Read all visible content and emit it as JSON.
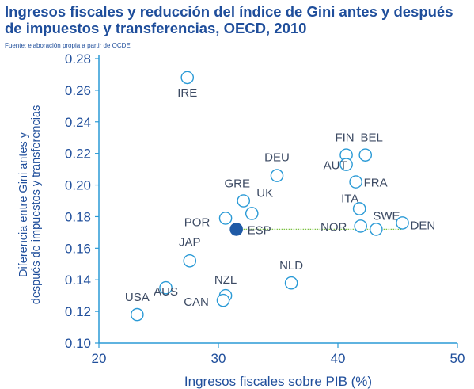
{
  "chart_data": {
    "type": "scatter",
    "title": "Ingresos fiscales y reducción del índice de Gini antes y después de impuestos y transferencias, OECD, 2010",
    "subtitle": "Fuente: elaboración propia a partir de OCDE",
    "xlabel": "Ingresos fiscales sobre PIB (%)",
    "ylabel": "Diferencia entre Gini antes y después de impuestos y transferencias",
    "xlim": [
      20,
      50
    ],
    "ylim": [
      0.1,
      0.28
    ],
    "xticks": [
      "20",
      "30",
      "40",
      "50"
    ],
    "yticks": [
      "0.10",
      "0.12",
      "0.14",
      "0.16",
      "0.18",
      "0.20",
      "0.22",
      "0.24",
      "0.26",
      "0.28"
    ],
    "grid": false,
    "reference_line": {
      "from_label": "ESP",
      "to_label": "DEN",
      "style": "dotted"
    },
    "points": [
      {
        "label": "IRE",
        "x": 27.4,
        "y": 0.268,
        "highlight": false
      },
      {
        "label": "FIN",
        "x": 40.7,
        "y": 0.219,
        "highlight": false
      },
      {
        "label": "BEL",
        "x": 42.3,
        "y": 0.219,
        "highlight": false
      },
      {
        "label": "AUT",
        "x": 40.7,
        "y": 0.213,
        "highlight": false
      },
      {
        "label": "DEU",
        "x": 34.9,
        "y": 0.206,
        "highlight": false
      },
      {
        "label": "FRA",
        "x": 41.5,
        "y": 0.202,
        "highlight": false
      },
      {
        "label": "GRE",
        "x": 32.1,
        "y": 0.19,
        "highlight": false
      },
      {
        "label": "ITA",
        "x": 41.8,
        "y": 0.185,
        "highlight": false
      },
      {
        "label": "UK",
        "x": 32.8,
        "y": 0.182,
        "highlight": false
      },
      {
        "label": "SWE",
        "x": 43.2,
        "y": 0.172,
        "highlight": false
      },
      {
        "label": "POR",
        "x": 30.6,
        "y": 0.179,
        "highlight": false
      },
      {
        "label": "NOR",
        "x": 41.9,
        "y": 0.174,
        "highlight": false
      },
      {
        "label": "DEN",
        "x": 45.4,
        "y": 0.176,
        "highlight": false
      },
      {
        "label": "ESP",
        "x": 31.5,
        "y": 0.172,
        "highlight": true
      },
      {
        "label": "JAP",
        "x": 27.6,
        "y": 0.152,
        "highlight": false
      },
      {
        "label": "NLD",
        "x": 36.1,
        "y": 0.138,
        "highlight": false
      },
      {
        "label": "AUS",
        "x": 25.6,
        "y": 0.135,
        "highlight": false
      },
      {
        "label": "NZL",
        "x": 30.6,
        "y": 0.13,
        "highlight": false
      },
      {
        "label": "CAN",
        "x": 30.4,
        "y": 0.127,
        "highlight": false
      },
      {
        "label": "USA",
        "x": 23.2,
        "y": 0.118,
        "highlight": false
      }
    ],
    "colors": {
      "text": "#1f4e9b",
      "axis": "#2a9ad6",
      "marker_stroke": "#2a9ad6",
      "marker_fill": "#ffffff",
      "highlight_fill": "#1f5aa6",
      "reference_line": "#7cc142",
      "label": "#3c4a63"
    }
  }
}
